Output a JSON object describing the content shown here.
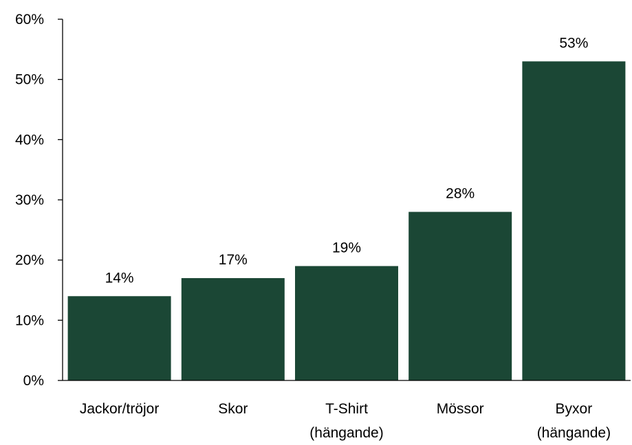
{
  "chart_data": {
    "type": "bar",
    "categories": [
      [
        "Jackor/tröjor"
      ],
      [
        "Skor"
      ],
      [
        "T-Shirt",
        "(hängande)"
      ],
      [
        "Mössor"
      ],
      [
        "Byxor",
        "(hängande)"
      ]
    ],
    "values": [
      14,
      17,
      19,
      28,
      53
    ],
    "data_labels": [
      "14%",
      "17%",
      "19%",
      "28%",
      "53%"
    ],
    "ylim": [
      0,
      60
    ],
    "yticks": [
      0,
      10,
      20,
      30,
      40,
      50,
      60
    ],
    "ytick_labels": [
      "0%",
      "10%",
      "20%",
      "30%",
      "40%",
      "50%",
      "60%"
    ],
    "title": "",
    "xlabel": "",
    "ylabel": "",
    "grid": false,
    "legend": "none",
    "bar_color": "#1b4735"
  }
}
